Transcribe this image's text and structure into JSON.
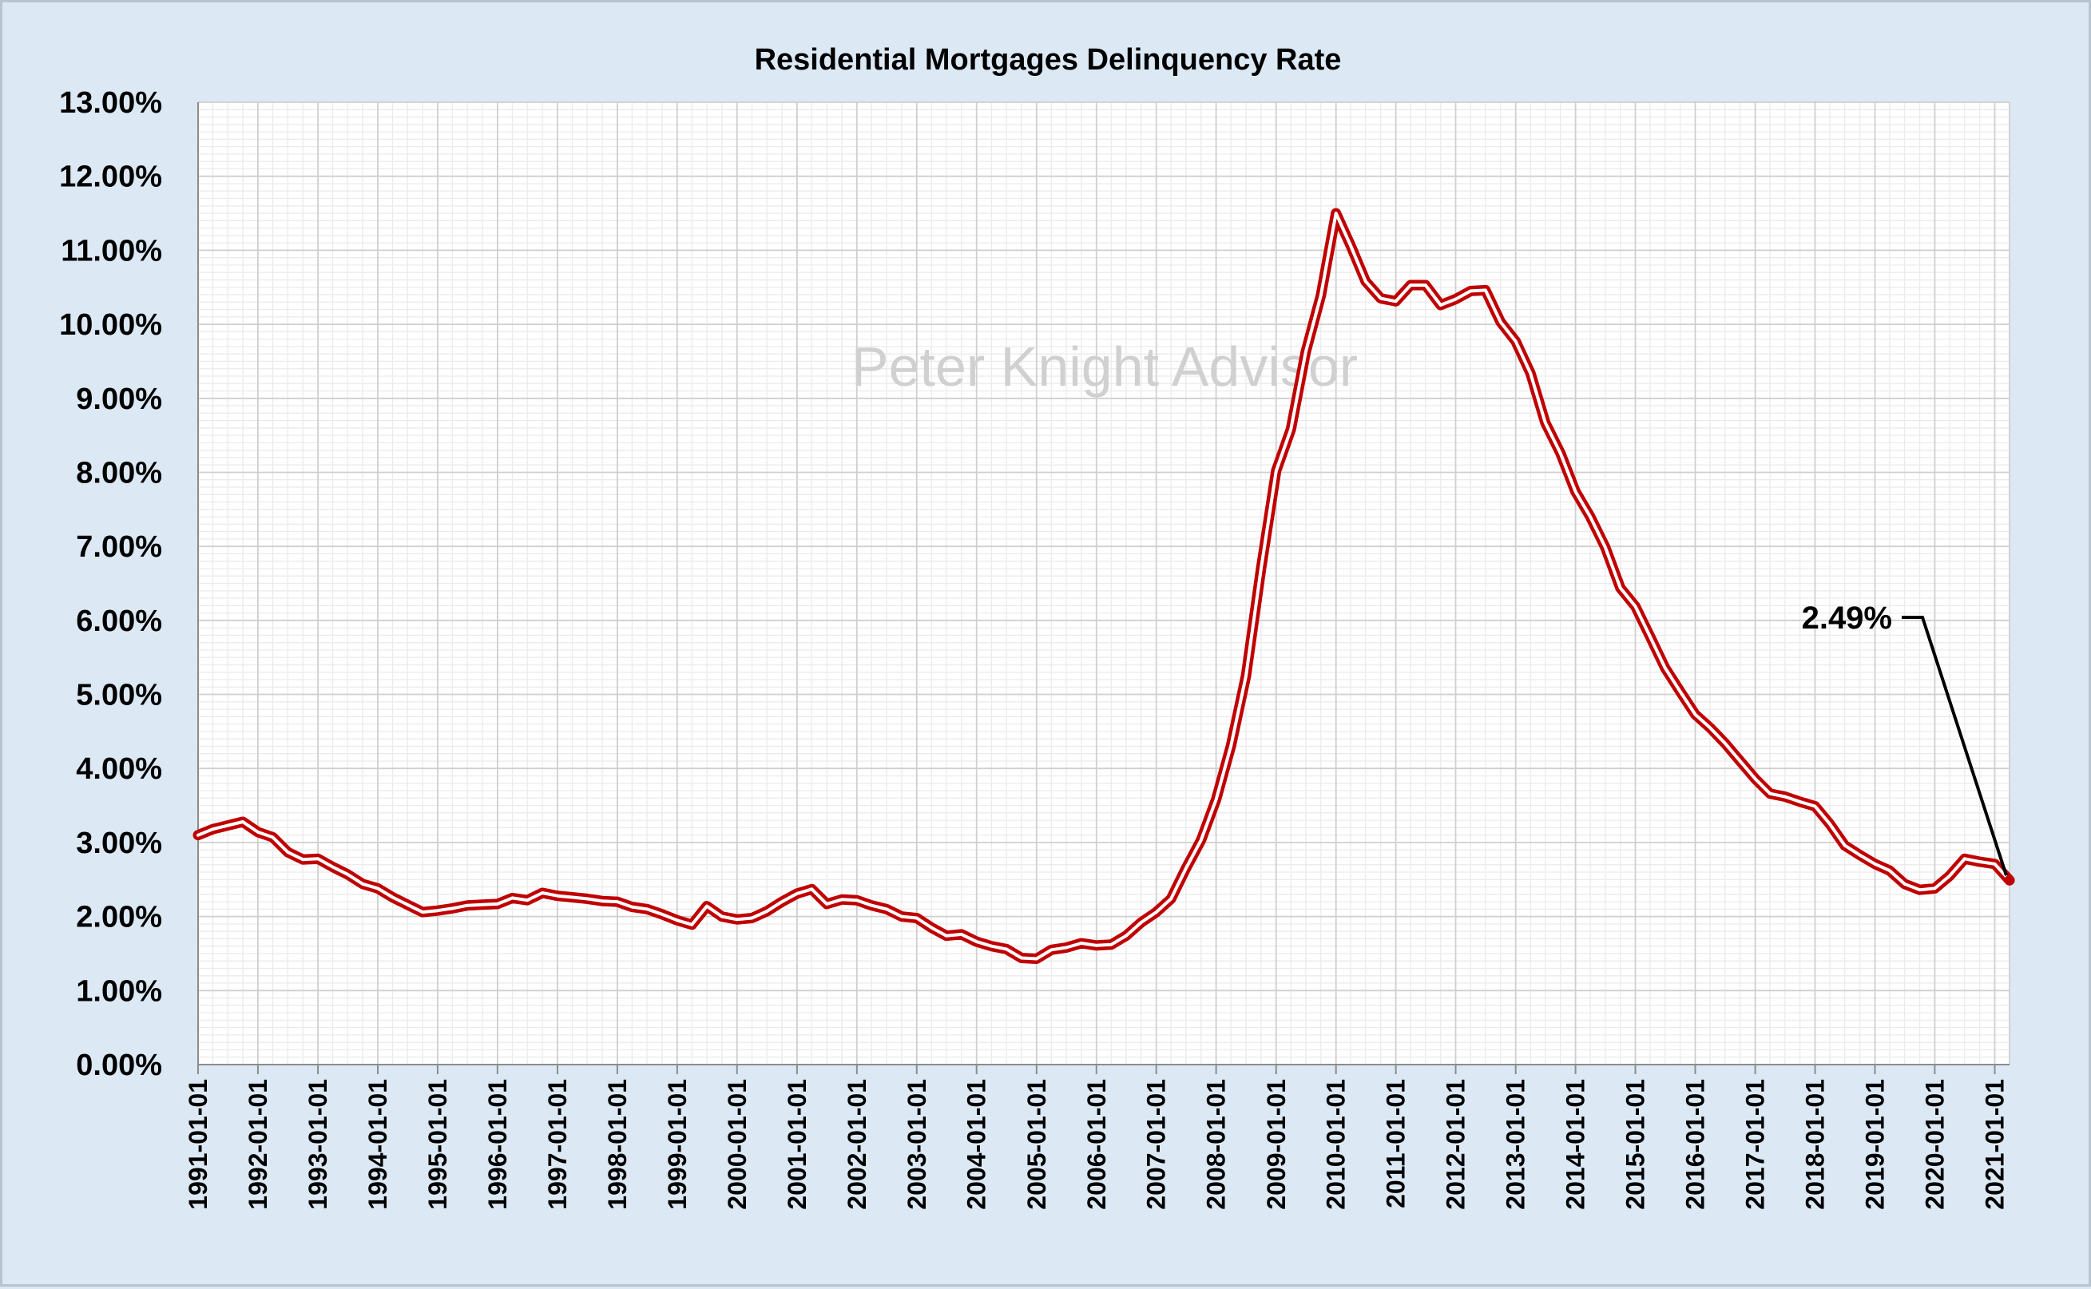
{
  "chart_data": {
    "type": "line",
    "title": "Residential Mortgages Delinquency Rate",
    "watermark": "Peter Knight Advisor",
    "xlabel": "",
    "ylabel": "",
    "ylim": [
      0,
      13
    ],
    "yticks": [
      "0.00%",
      "1.00%",
      "2.00%",
      "3.00%",
      "4.00%",
      "5.00%",
      "6.00%",
      "7.00%",
      "8.00%",
      "9.00%",
      "10.00%",
      "11.00%",
      "12.00%",
      "13.00%"
    ],
    "xticks": [
      "1991-01-01",
      "1992-01-01",
      "1993-01-01",
      "1994-01-01",
      "1995-01-01",
      "1996-01-01",
      "1997-01-01",
      "1998-01-01",
      "1999-01-01",
      "2000-01-01",
      "2001-01-01",
      "2002-01-01",
      "2003-01-01",
      "2004-01-01",
      "2005-01-01",
      "2006-01-01",
      "2007-01-01",
      "2008-01-01",
      "2009-01-01",
      "2010-01-01",
      "2011-01-01",
      "2012-01-01",
      "2013-01-01",
      "2014-01-01",
      "2015-01-01",
      "2016-01-01",
      "2017-01-01",
      "2018-01-01",
      "2019-01-01",
      "2020-01-01",
      "2021-01-01"
    ],
    "grid": true,
    "legend": "none",
    "series": [
      {
        "color": "#c00000",
        "x": [
          "1991-01-01",
          "1991-04-01",
          "1991-07-01",
          "1991-10-01",
          "1992-01-01",
          "1992-04-01",
          "1992-07-01",
          "1992-10-01",
          "1993-01-01",
          "1993-04-01",
          "1993-07-01",
          "1993-10-01",
          "1994-01-01",
          "1994-04-01",
          "1994-07-01",
          "1994-10-01",
          "1995-01-01",
          "1995-04-01",
          "1995-07-01",
          "1995-10-01",
          "1996-01-01",
          "1996-04-01",
          "1996-07-01",
          "1996-10-01",
          "1997-01-01",
          "1997-04-01",
          "1997-07-01",
          "1997-10-01",
          "1998-01-01",
          "1998-04-01",
          "1998-07-01",
          "1998-10-01",
          "1999-01-01",
          "1999-04-01",
          "1999-07-01",
          "1999-10-01",
          "2000-01-01",
          "2000-04-01",
          "2000-07-01",
          "2000-10-01",
          "2001-01-01",
          "2001-04-01",
          "2001-07-01",
          "2001-10-01",
          "2002-01-01",
          "2002-04-01",
          "2002-07-01",
          "2002-10-01",
          "2003-01-01",
          "2003-04-01",
          "2003-07-01",
          "2003-10-01",
          "2004-01-01",
          "2004-04-01",
          "2004-07-01",
          "2004-10-01",
          "2005-01-01",
          "2005-04-01",
          "2005-07-01",
          "2005-10-01",
          "2006-01-01",
          "2006-04-01",
          "2006-07-01",
          "2006-10-01",
          "2007-01-01",
          "2007-04-01",
          "2007-07-01",
          "2007-10-01",
          "2008-01-01",
          "2008-04-01",
          "2008-07-01",
          "2008-10-01",
          "2009-01-01",
          "2009-04-01",
          "2009-07-01",
          "2009-10-01",
          "2010-01-01",
          "2010-04-01",
          "2010-07-01",
          "2010-10-01",
          "2011-01-01",
          "2011-04-01",
          "2011-07-01",
          "2011-10-01",
          "2012-01-01",
          "2012-04-01",
          "2012-07-01",
          "2012-10-01",
          "2013-01-01",
          "2013-04-01",
          "2013-07-01",
          "2013-10-01",
          "2014-01-01",
          "2014-04-01",
          "2014-07-01",
          "2014-10-01",
          "2015-01-01",
          "2015-04-01",
          "2015-07-01",
          "2015-10-01",
          "2016-01-01",
          "2016-04-01",
          "2016-07-01",
          "2016-10-01",
          "2017-01-01",
          "2017-04-01",
          "2017-07-01",
          "2017-10-01",
          "2018-01-01",
          "2018-04-01",
          "2018-07-01",
          "2018-10-01",
          "2019-01-01",
          "2019-04-01",
          "2019-07-01",
          "2019-10-01",
          "2020-01-01",
          "2020-04-01",
          "2020-07-01",
          "2020-10-01",
          "2021-01-01",
          "2021-04-01"
        ],
        "values": [
          3.1,
          3.18,
          3.23,
          3.28,
          3.14,
          3.07,
          2.87,
          2.77,
          2.78,
          2.67,
          2.57,
          2.44,
          2.38,
          2.26,
          2.16,
          2.06,
          2.08,
          2.11,
          2.15,
          2.16,
          2.17,
          2.25,
          2.22,
          2.32,
          2.28,
          2.26,
          2.24,
          2.21,
          2.2,
          2.13,
          2.1,
          2.03,
          1.95,
          1.89,
          2.14,
          2.0,
          1.96,
          1.98,
          2.07,
          2.2,
          2.31,
          2.37,
          2.17,
          2.23,
          2.22,
          2.15,
          2.1,
          2.0,
          1.98,
          1.85,
          1.74,
          1.76,
          1.66,
          1.6,
          1.56,
          1.44,
          1.43,
          1.55,
          1.58,
          1.64,
          1.61,
          1.62,
          1.74,
          1.92,
          2.06,
          2.24,
          2.65,
          3.03,
          3.58,
          4.31,
          5.25,
          6.7,
          8.02,
          8.58,
          9.63,
          10.39,
          11.5,
          11.06,
          10.58,
          10.35,
          10.31,
          10.53,
          10.53,
          10.26,
          10.34,
          10.45,
          10.46,
          10.03,
          9.77,
          9.34,
          8.67,
          8.26,
          7.74,
          7.4,
          6.99,
          6.44,
          6.19,
          5.78,
          5.36,
          5.04,
          4.73,
          4.55,
          4.34,
          4.1,
          3.86,
          3.66,
          3.62,
          3.55,
          3.49,
          3.25,
          2.96,
          2.83,
          2.71,
          2.62,
          2.44,
          2.36,
          2.38,
          2.55,
          2.78,
          2.74,
          2.71,
          2.49
        ]
      }
    ],
    "annotations": [
      {
        "text": "2.49%",
        "x": "2021-04-01",
        "y": 2.49
      }
    ]
  }
}
